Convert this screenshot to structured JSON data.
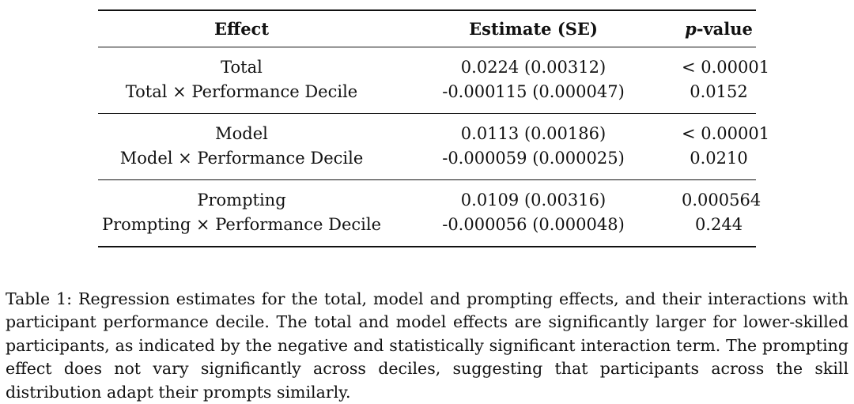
{
  "table": {
    "headers": {
      "effect": "Effect",
      "estimate": "Estimate (SE)",
      "pvalue_italic": "p",
      "pvalue_rest": "-value"
    },
    "groups": [
      {
        "rows": [
          {
            "effect": "Total",
            "estimate": "0.0224 (0.00312)",
            "pvalue": "< 0.00001"
          },
          {
            "effect": "Total × Performance Decile",
            "estimate": "-0.000115 (0.000047)",
            "pvalue": "0.0152"
          }
        ]
      },
      {
        "rows": [
          {
            "effect": "Model",
            "estimate": "0.0113 (0.00186)",
            "pvalue": "< 0.00001"
          },
          {
            "effect": "Model × Performance Decile",
            "estimate": "-0.000059 (0.000025)",
            "pvalue": "0.0210"
          }
        ]
      },
      {
        "rows": [
          {
            "effect": "Prompting",
            "estimate": "0.0109 (0.00316)",
            "pvalue": "0.000564"
          },
          {
            "effect": "Prompting × Performance Decile",
            "estimate": "-0.000056 (0.000048)",
            "pvalue": "0.244"
          }
        ]
      }
    ]
  },
  "caption": "Table 1: Regression estimates for the total, model and prompting effects, and their interactions with participant performance decile. The total and model effects are significantly larger for lower-skilled participants, as indicated by the negative and statistically significant interaction term. The prompting effect does not vary significantly across deciles, suggesting that participants across the skill distribution adapt their prompts similarly."
}
